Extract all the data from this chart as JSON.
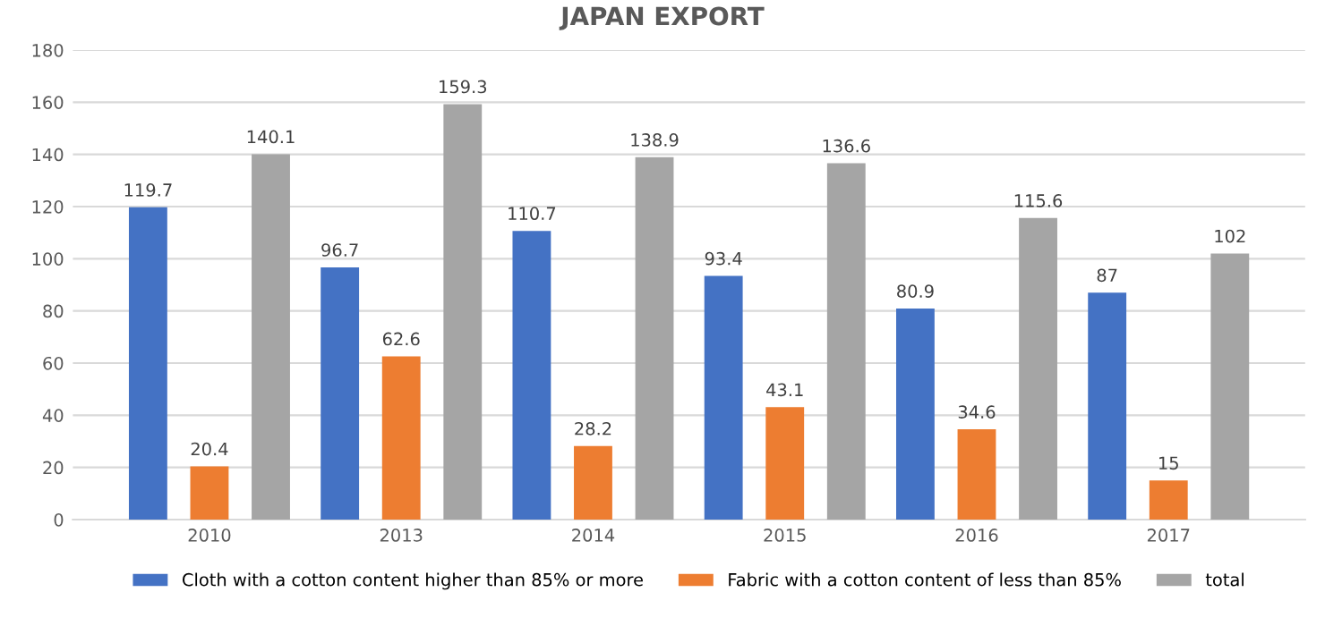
{
  "chart_data": {
    "type": "bar",
    "title": "JAPAN EXPORT",
    "categories": [
      "2010",
      "2013",
      "2014",
      "2015",
      "2016",
      "2017"
    ],
    "series": [
      {
        "name": "Cloth with a cotton content higher than 85% or more",
        "color": "#4472c4",
        "values": [
          119.7,
          96.7,
          110.7,
          93.4,
          80.9,
          87
        ]
      },
      {
        "name": "Fabric with a cotton content of less than 85%",
        "color": "#ed7d31",
        "values": [
          20.4,
          62.6,
          28.2,
          43.1,
          34.6,
          15
        ]
      },
      {
        "name": "total",
        "color": "#a5a5a5",
        "values": [
          140.1,
          159.3,
          138.9,
          136.6,
          115.6,
          102
        ]
      }
    ],
    "ylim": [
      0,
      180
    ],
    "yticks": [
      0,
      20,
      40,
      60,
      80,
      100,
      120,
      140,
      160,
      180
    ],
    "grid": "y",
    "legend": "bottom",
    "data_labels": true
  }
}
